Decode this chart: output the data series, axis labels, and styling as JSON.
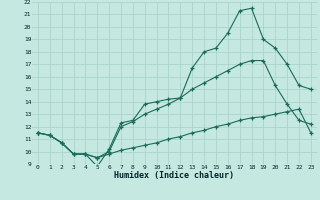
{
  "xlabel": "Humidex (Indice chaleur)",
  "background_color": "#c5e8e0",
  "grid_color": "#aad4ca",
  "line_color": "#1a6b5a",
  "xlim": [
    -0.5,
    23.5
  ],
  "ylim": [
    9,
    22
  ],
  "xticks": [
    0,
    1,
    2,
    3,
    4,
    5,
    6,
    7,
    8,
    9,
    10,
    11,
    12,
    13,
    14,
    15,
    16,
    17,
    18,
    19,
    20,
    21,
    22,
    23
  ],
  "yticks": [
    9,
    10,
    11,
    12,
    13,
    14,
    15,
    16,
    17,
    18,
    19,
    20,
    21,
    22
  ],
  "line1_x": [
    0,
    1,
    2,
    3,
    4,
    5,
    6,
    7,
    8,
    9,
    10,
    11,
    12,
    13,
    14,
    15,
    16,
    17,
    18,
    19,
    20,
    21,
    22,
    23
  ],
  "line1_y": [
    11.5,
    11.3,
    10.7,
    9.8,
    9.8,
    8.8,
    10.2,
    12.3,
    12.5,
    13.8,
    14.0,
    14.2,
    14.3,
    16.7,
    18.0,
    18.3,
    19.5,
    21.3,
    21.5,
    19.0,
    18.3,
    17.0,
    15.3,
    15.0
  ],
  "line2_x": [
    0,
    1,
    2,
    3,
    4,
    5,
    6,
    7,
    8,
    9,
    10,
    11,
    12,
    13,
    14,
    15,
    16,
    17,
    18,
    19,
    20,
    21,
    22,
    23
  ],
  "line2_y": [
    11.5,
    11.3,
    10.7,
    9.8,
    9.8,
    9.5,
    10.0,
    12.0,
    12.4,
    13.0,
    13.4,
    13.8,
    14.3,
    15.0,
    15.5,
    16.0,
    16.5,
    17.0,
    17.3,
    17.3,
    15.3,
    13.8,
    12.5,
    12.2
  ],
  "line3_x": [
    0,
    1,
    2,
    3,
    4,
    5,
    6,
    7,
    8,
    9,
    10,
    11,
    12,
    13,
    14,
    15,
    16,
    17,
    18,
    19,
    20,
    21,
    22,
    23
  ],
  "line3_y": [
    11.5,
    11.3,
    10.7,
    9.8,
    9.8,
    9.5,
    9.8,
    10.1,
    10.3,
    10.5,
    10.7,
    11.0,
    11.2,
    11.5,
    11.7,
    12.0,
    12.2,
    12.5,
    12.7,
    12.8,
    13.0,
    13.2,
    13.4,
    11.5
  ]
}
